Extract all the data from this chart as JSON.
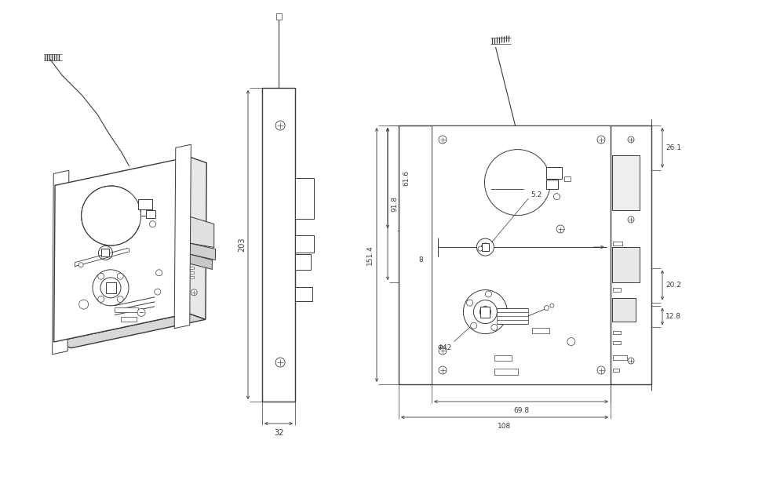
{
  "bg_color": "#ffffff",
  "line_color": "#3a3a3a",
  "dim_color": "#3a3a3a",
  "lw": 0.7,
  "lw_thick": 1.0,
  "fig_w": 9.99,
  "fig_h": 6.12,
  "dims_right": {
    "151_4": "151.4",
    "91_8": "91.8",
    "61_6": "61.6",
    "8": "8",
    "5_2": "5.2",
    "phi42": "Φ42",
    "69_8": "69.8",
    "108": "108",
    "26_1": "26.1",
    "20_2": "20.2",
    "12_8": "12.8"
  },
  "dim_middle": {
    "203": "203",
    "32": "32"
  }
}
